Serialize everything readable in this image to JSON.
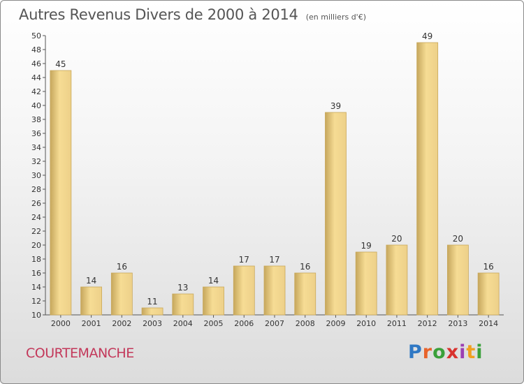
{
  "header": {
    "title": "Autres Revenus Divers de 2000 à 2014",
    "unit": "(en milliers d'€)"
  },
  "footer": {
    "city": "COURTEMANCHE",
    "logo": [
      "P",
      "r",
      "o",
      "x",
      "i",
      "t",
      "i"
    ],
    "logo_colors": [
      "#2f78c4",
      "#e8632b",
      "#3aa03a",
      "#d8322e",
      "#9b3fb2",
      "#f0a020",
      "#3aa03a"
    ]
  },
  "chart_data": {
    "type": "bar",
    "title": "Autres Revenus Divers de 2000 à 2014",
    "subtitle": "(en milliers d'€)",
    "xlabel": "",
    "ylabel": "",
    "categories": [
      "2000",
      "2001",
      "2002",
      "2003",
      "2004",
      "2005",
      "2006",
      "2007",
      "2008",
      "2009",
      "2010",
      "2011",
      "2012",
      "2013",
      "2014"
    ],
    "values": [
      45,
      14,
      16,
      11,
      13,
      14,
      17,
      17,
      16,
      39,
      19,
      20,
      49,
      20,
      16
    ],
    "ylim": [
      10,
      50
    ],
    "ytick_step": 2,
    "grid": false,
    "bar_color": "#f0d286",
    "bar_edge_color": "#c9a85a"
  }
}
